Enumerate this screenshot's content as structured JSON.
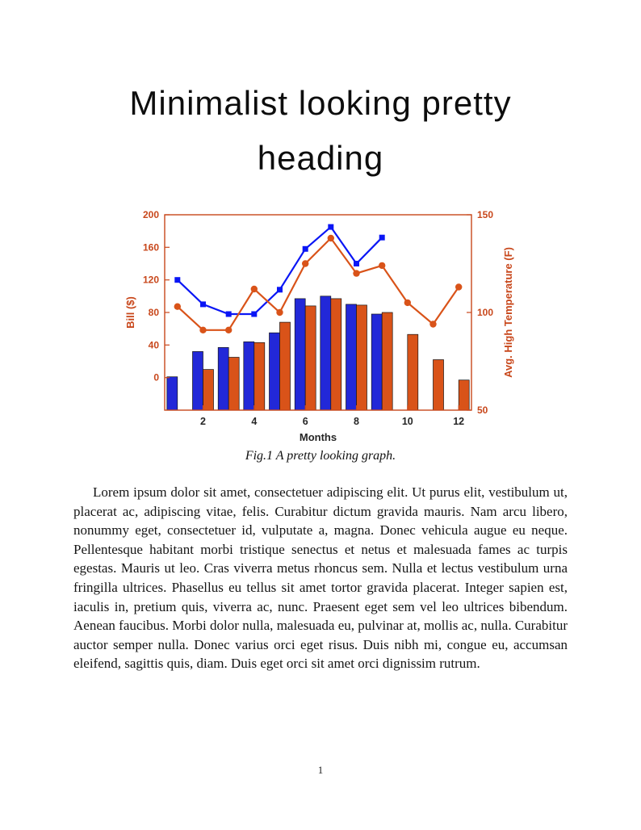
{
  "heading": "Minimalist looking pretty heading",
  "figure": {
    "caption": "Fig.1 A pretty looking graph."
  },
  "body": {
    "paragraph": "Lorem ipsum dolor sit amet, consectetuer adipiscing elit. Ut purus elit, vestibulum ut, placerat ac, adipiscing vitae, felis. Curabitur dictum gravida mauris. Nam arcu libero, nonummy eget, consectetuer id, vulputate a, magna. Donec vehicula augue eu neque. Pellentesque habitant morbi tristique senectus et netus et malesuada fames ac turpis egestas. Mauris ut leo. Cras viverra metus rhoncus sem. Nulla et lectus vestibulum urna fringilla ultrices. Phasellus eu tellus sit amet tortor gravida placerat. Integer sapien est, iaculis in, pretium quis, viverra ac, nunc. Praesent eget sem vel leo ultrices bibendum. Aenean faucibus. Morbi dolor nulla, malesuada eu, pulvinar at, mollis ac, nulla. Curabitur auctor semper nulla. Donec varius orci eget risus. Duis nibh mi, congue eu, accumsan eleifend, sagittis quis, diam. Duis eget orci sit amet orci dignissim rutrum."
  },
  "footer": {
    "page_number": "1"
  },
  "chart_data": {
    "type": "bar",
    "title": "",
    "xlabel": "Months",
    "x": [
      1,
      2,
      3,
      4,
      5,
      6,
      7,
      8,
      9,
      10,
      11,
      12
    ],
    "xticks": [
      2,
      4,
      6,
      8,
      10,
      12
    ],
    "left_axis": {
      "label": "Bill ($)",
      "lim": [
        -40,
        200
      ],
      "ticks": [
        0,
        40,
        80,
        120,
        160,
        200
      ],
      "color": "#c8471b"
    },
    "right_axis": {
      "label": "Avg. High Temperature (F)",
      "lim": [
        50,
        150
      ],
      "ticks": [
        50,
        100,
        150
      ],
      "color": "#c8471b"
    },
    "grid": false,
    "legend": "none",
    "bar_baseline": "axis-bottom",
    "series": [
      {
        "name": "bill-bars-blue",
        "type": "bar",
        "axis": "left",
        "color": "#2228d8",
        "values": [
          1,
          32,
          37,
          44,
          55,
          97,
          100,
          90,
          78,
          null,
          null,
          null
        ]
      },
      {
        "name": "bill-bars-orange",
        "type": "bar",
        "axis": "left",
        "color": "#d95319",
        "values": [
          null,
          10,
          25,
          43,
          68,
          88,
          97,
          89,
          80,
          53,
          22,
          -3
        ]
      },
      {
        "name": "bill-line-blue",
        "type": "line",
        "axis": "left",
        "marker": "square",
        "color": "#0a16f5",
        "values": [
          120,
          90,
          78,
          78,
          108,
          158,
          185,
          140,
          172,
          null,
          null,
          null
        ]
      },
      {
        "name": "temperature-line-orange",
        "type": "line",
        "axis": "right",
        "marker": "circle",
        "color": "#d95319",
        "values": [
          103,
          91,
          91,
          112,
          100,
          125,
          138,
          120,
          124,
          105,
          94,
          113
        ]
      }
    ]
  }
}
